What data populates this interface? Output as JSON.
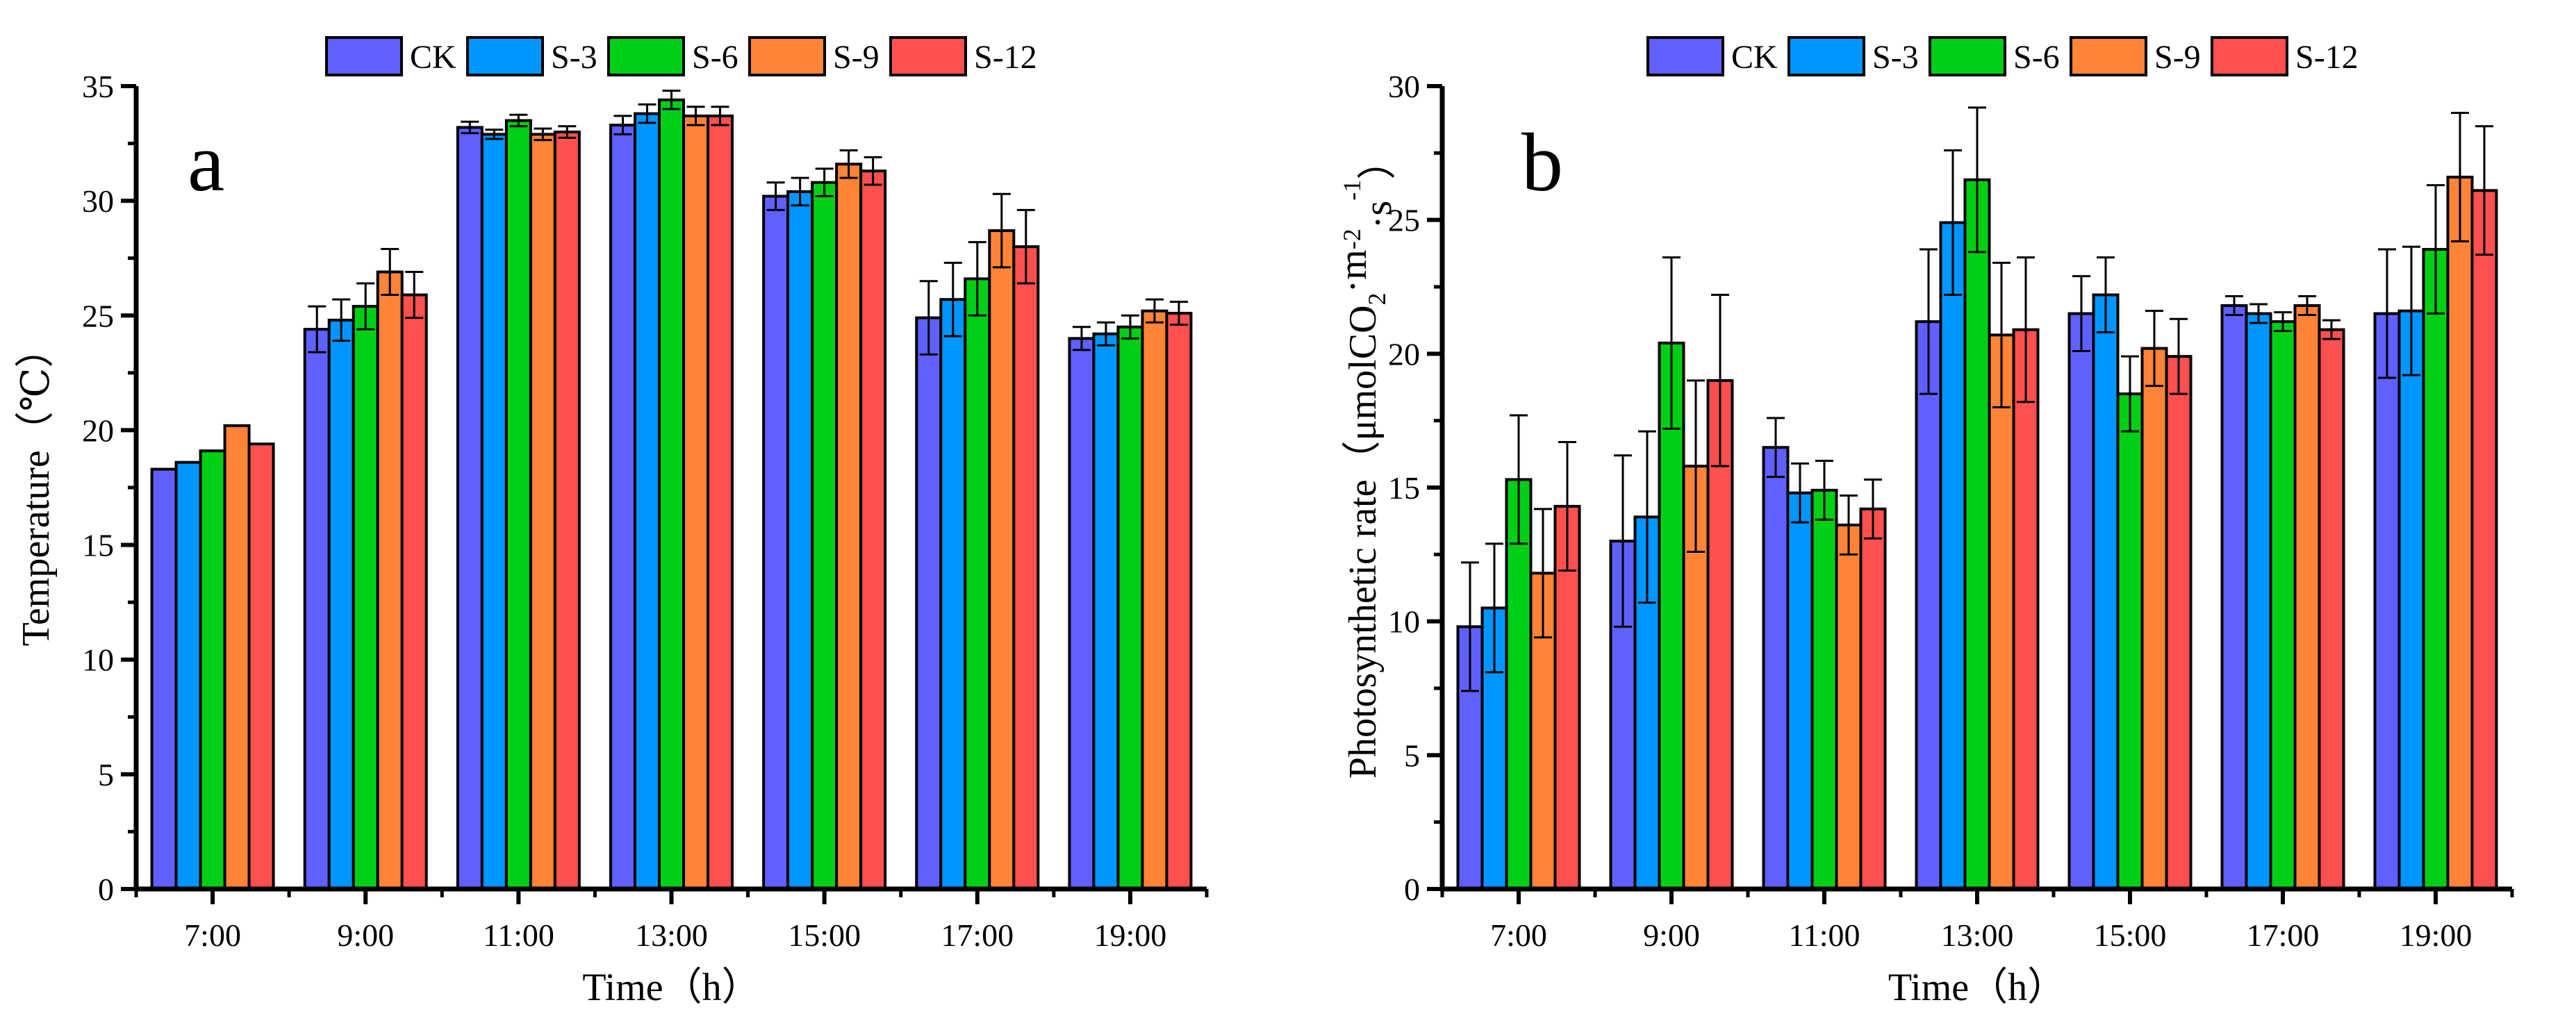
{
  "colors": {
    "CK": "#6060FF",
    "S-3": "#0096FF",
    "S-6": "#00D015",
    "S-9": "#FF8438",
    "S-12": "#FF5050"
  },
  "chart_data": [
    {
      "type": "bar",
      "panel_label": "a",
      "xlabel": "Time（h）",
      "ylabel": "Temperature（℃）",
      "ylim": [
        0,
        35
      ],
      "yticks": [
        0,
        5,
        10,
        15,
        20,
        25,
        30,
        35
      ],
      "legend_position": "top-center",
      "categories": [
        "7:00",
        "9:00",
        "11:00",
        "13:00",
        "15:00",
        "17:00",
        "19:00"
      ],
      "series": [
        {
          "name": "CK",
          "values": [
            18.3,
            24.4,
            33.2,
            33.3,
            30.2,
            24.9,
            24.0
          ],
          "errors": [
            0,
            1.0,
            0.25,
            0.4,
            0.6,
            1.6,
            0.5
          ]
        },
        {
          "name": "S-3",
          "values": [
            18.6,
            24.8,
            32.9,
            33.8,
            30.4,
            25.7,
            24.2
          ],
          "errors": [
            0,
            0.9,
            0.2,
            0.4,
            0.6,
            1.6,
            0.5
          ]
        },
        {
          "name": "S-6",
          "values": [
            19.1,
            25.4,
            33.5,
            34.4,
            30.8,
            26.6,
            24.5
          ],
          "errors": [
            0,
            1.0,
            0.25,
            0.4,
            0.6,
            1.6,
            0.5
          ]
        },
        {
          "name": "S-9",
          "values": [
            20.2,
            26.9,
            32.9,
            33.7,
            31.6,
            28.7,
            25.2
          ],
          "errors": [
            0,
            1.0,
            0.25,
            0.4,
            0.6,
            1.6,
            0.5
          ]
        },
        {
          "name": "S-12",
          "values": [
            19.4,
            25.9,
            33.0,
            33.7,
            31.3,
            28.0,
            25.1
          ],
          "errors": [
            0,
            1.0,
            0.25,
            0.4,
            0.6,
            1.6,
            0.5
          ]
        }
      ]
    },
    {
      "type": "bar",
      "panel_label": "b",
      "xlabel": "Time（h）",
      "ylabel_parts": [
        "Photosynthetic rate（μmolCO",
        "2",
        "·m",
        "-2",
        "·s",
        "-1",
        "）"
      ],
      "ylim": [
        0,
        30
      ],
      "yticks": [
        0,
        5,
        10,
        15,
        20,
        25,
        30
      ],
      "legend_position": "top-center",
      "categories": [
        "7:00",
        "9:00",
        "11:00",
        "13:00",
        "15:00",
        "17:00",
        "19:00"
      ],
      "series": [
        {
          "name": "CK",
          "values": [
            9.8,
            13.0,
            16.5,
            21.2,
            21.5,
            21.8,
            21.5
          ],
          "errors": [
            2.4,
            3.2,
            1.1,
            2.7,
            1.4,
            0.35,
            2.4
          ]
        },
        {
          "name": "S-3",
          "values": [
            10.5,
            13.9,
            14.8,
            24.9,
            22.2,
            21.5,
            21.6
          ],
          "errors": [
            2.4,
            3.2,
            1.1,
            2.7,
            1.4,
            0.35,
            2.4
          ]
        },
        {
          "name": "S-6",
          "values": [
            15.3,
            20.4,
            14.9,
            26.5,
            18.5,
            21.2,
            23.9
          ],
          "errors": [
            2.4,
            3.2,
            1.1,
            2.7,
            1.4,
            0.35,
            2.4
          ]
        },
        {
          "name": "S-9",
          "values": [
            11.8,
            15.8,
            13.6,
            20.7,
            20.2,
            21.8,
            26.6
          ],
          "errors": [
            2.4,
            3.2,
            1.1,
            2.7,
            1.4,
            0.35,
            2.4
          ]
        },
        {
          "name": "S-12",
          "values": [
            14.3,
            19.0,
            14.2,
            20.9,
            19.9,
            20.9,
            26.1
          ],
          "errors": [
            2.4,
            3.2,
            1.1,
            2.7,
            1.4,
            0.35,
            2.4
          ]
        }
      ]
    }
  ]
}
